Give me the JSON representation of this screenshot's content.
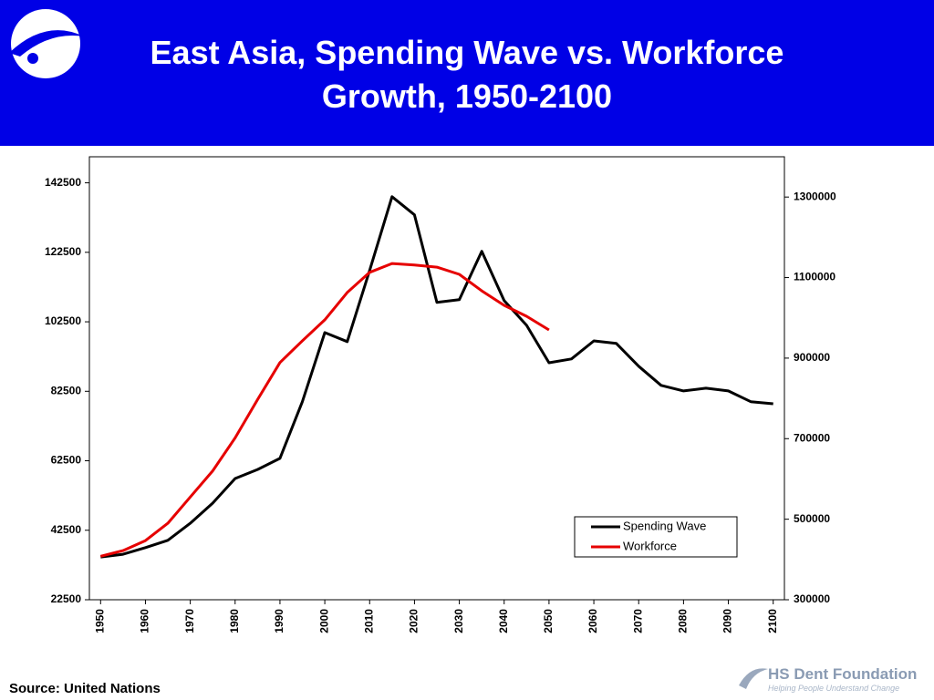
{
  "chart_data": {
    "type": "line",
    "title": "East Asia, Spending Wave vs. Workforce Growth, 1950-2100",
    "x": [
      1950,
      1955,
      1960,
      1965,
      1970,
      1975,
      1980,
      1985,
      1990,
      1995,
      2000,
      2005,
      2010,
      2015,
      2020,
      2025,
      2030,
      2035,
      2040,
      2045,
      2050,
      2055,
      2060,
      2065,
      2070,
      2075,
      2080,
      2085,
      2090,
      2095,
      2100
    ],
    "series": [
      {
        "name": "Spending Wave",
        "color": "#000000",
        "axis": "y",
        "values": [
          34800,
          35600,
          37500,
          39600,
          44500,
          50300,
          57400,
          60000,
          63200,
          79500,
          99400,
          96800,
          117300,
          138500,
          133300,
          108100,
          108900,
          122800,
          108600,
          101500,
          90700,
          91800,
          97000,
          96300,
          89700,
          84200,
          82600,
          83400,
          82600,
          79500,
          78900
        ]
      },
      {
        "name": "Workforce",
        "color": "#e60000",
        "axis": "y2",
        "values": [
          408000,
          422000,
          447000,
          490000,
          555000,
          620000,
          702000,
          797000,
          889000,
          943000,
          995000,
          1063000,
          1113000,
          1135000,
          1131000,
          1126000,
          1108000,
          1067000,
          1031000,
          1004000,
          970000,
          null,
          null,
          null,
          null,
          null,
          null,
          null,
          null,
          null,
          null
        ]
      }
    ],
    "xlim": [
      1947.5,
      2102.5
    ],
    "xticks": [
      1950,
      1960,
      1970,
      1980,
      1990,
      2000,
      2010,
      2020,
      2030,
      2040,
      2050,
      2060,
      2070,
      2080,
      2090,
      2100
    ],
    "ylim": [
      22500,
      150000
    ],
    "yticks": [
      22500,
      42500,
      62500,
      82500,
      102500,
      122500,
      142500
    ],
    "y2lim": [
      300000,
      1400000
    ],
    "y2ticks": [
      300000,
      500000,
      700000,
      900000,
      1100000,
      1300000
    ],
    "grid": false,
    "legend": "lower right"
  },
  "source": "Source: United Nations",
  "brand": {
    "name": "HS Dent Foundation",
    "tagline": "Helping People Understand Change"
  }
}
